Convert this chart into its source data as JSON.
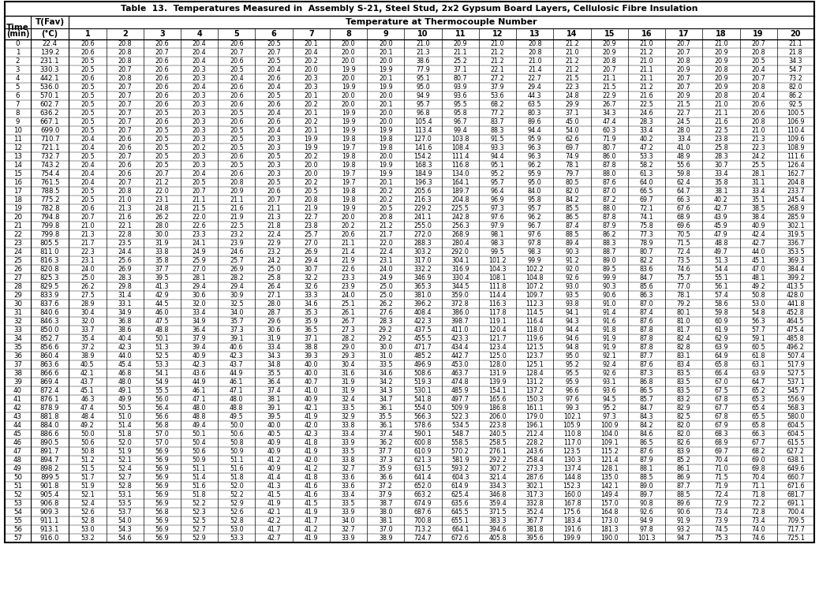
{
  "title": "Table  13.  Temperatures Measured in  Assembly S-21, Steel Stud, 2x2 Gypsum Board Layers, Cellulosic Fibre Insulation",
  "rows": [
    [
      0,
      22.4,
      20.6,
      20.8,
      20.6,
      20.4,
      20.6,
      20.5,
      20.1,
      20.0,
      20.0,
      21.0,
      20.9,
      21.0,
      20.8,
      21.2,
      20.9,
      21.0,
      20.7,
      21.0,
      20.7,
      21.1
    ],
    [
      1,
      139.2,
      20.6,
      20.8,
      20.7,
      20.4,
      20.7,
      20.7,
      20.4,
      20.0,
      20.1,
      21.3,
      21.1,
      21.2,
      20.8,
      21.0,
      20.9,
      21.2,
      20.7,
      20.9,
      20.8,
      21.8
    ],
    [
      2,
      231.1,
      20.5,
      20.8,
      20.6,
      20.4,
      20.6,
      20.5,
      20.2,
      20.0,
      20.0,
      38.6,
      25.2,
      21.2,
      21.0,
      21.2,
      20.8,
      21.0,
      20.8,
      20.9,
      20.5,
      34.3
    ],
    [
      3,
      330.3,
      20.5,
      20.7,
      20.6,
      20.3,
      20.5,
      20.4,
      20.0,
      19.9,
      19.9,
      77.9,
      37.1,
      22.1,
      21.4,
      21.2,
      20.7,
      21.1,
      20.9,
      20.8,
      20.4,
      54.7
    ],
    [
      4,
      442.1,
      20.6,
      20.8,
      20.6,
      20.3,
      20.4,
      20.6,
      20.3,
      20.0,
      20.1,
      95.1,
      80.7,
      27.2,
      22.7,
      21.5,
      21.1,
      21.1,
      20.7,
      20.9,
      20.7,
      73.2
    ],
    [
      5,
      536.0,
      20.5,
      20.7,
      20.6,
      20.4,
      20.6,
      20.4,
      20.3,
      19.9,
      19.9,
      95.0,
      93.9,
      37.9,
      29.4,
      22.3,
      21.5,
      21.2,
      20.7,
      20.9,
      20.8,
      82.0
    ],
    [
      6,
      570.1,
      20.5,
      20.7,
      20.6,
      20.3,
      20.6,
      20.5,
      20.1,
      20.0,
      20.0,
      94.9,
      93.6,
      53.6,
      44.3,
      24.8,
      22.9,
      21.6,
      20.9,
      20.8,
      20.4,
      86.2
    ],
    [
      7,
      602.7,
      20.5,
      20.7,
      20.6,
      20.3,
      20.6,
      20.6,
      20.2,
      20.0,
      20.1,
      95.7,
      95.5,
      68.2,
      63.5,
      29.9,
      26.7,
      22.5,
      21.5,
      21.0,
      20.6,
      92.5
    ],
    [
      8,
      636.2,
      20.5,
      20.7,
      20.5,
      20.3,
      20.5,
      20.4,
      20.1,
      19.9,
      20.0,
      96.8,
      95.8,
      77.2,
      80.3,
      37.1,
      34.3,
      24.6,
      22.7,
      21.1,
      20.6,
      100.5
    ],
    [
      9,
      667.1,
      20.5,
      20.7,
      20.6,
      20.3,
      20.6,
      20.6,
      20.2,
      19.9,
      20.0,
      105.4,
      96.7,
      83.7,
      89.6,
      45.0,
      47.4,
      28.3,
      24.5,
      21.6,
      20.8,
      106.9
    ],
    [
      10,
      699.0,
      20.5,
      20.7,
      20.5,
      20.3,
      20.5,
      20.4,
      20.1,
      19.9,
      19.9,
      113.4,
      99.4,
      88.3,
      94.4,
      54.0,
      60.3,
      33.4,
      28.0,
      22.5,
      21.0,
      110.4
    ],
    [
      11,
      710.7,
      20.4,
      20.6,
      20.5,
      20.3,
      20.5,
      20.3,
      19.9,
      19.8,
      19.8,
      127.0,
      103.8,
      91.5,
      95.9,
      62.6,
      71.9,
      40.2,
      33.4,
      23.8,
      21.3,
      109.6
    ],
    [
      12,
      721.1,
      20.4,
      20.6,
      20.5,
      20.2,
      20.5,
      20.3,
      19.9,
      19.7,
      19.8,
      141.6,
      108.4,
      93.3,
      96.3,
      69.7,
      80.7,
      47.2,
      41.0,
      25.8,
      22.3,
      108.9
    ],
    [
      13,
      732.7,
      20.5,
      20.7,
      20.5,
      20.3,
      20.6,
      20.5,
      20.2,
      19.8,
      20.0,
      154.2,
      111.4,
      94.4,
      96.3,
      74.9,
      86.0,
      53.3,
      48.9,
      28.3,
      24.2,
      111.6
    ],
    [
      14,
      743.2,
      20.4,
      20.6,
      20.5,
      20.3,
      20.5,
      20.3,
      20.0,
      19.8,
      19.9,
      168.3,
      116.8,
      95.1,
      96.2,
      78.1,
      87.8,
      58.2,
      55.6,
      30.7,
      25.5,
      126.4
    ],
    [
      15,
      754.4,
      20.4,
      20.6,
      20.7,
      20.4,
      20.6,
      20.3,
      20.0,
      19.7,
      19.9,
      184.9,
      134.0,
      95.2,
      95.9,
      79.7,
      88.0,
      61.3,
      59.8,
      33.4,
      28.1,
      162.7
    ],
    [
      16,
      761.5,
      20.4,
      20.7,
      21.2,
      20.5,
      20.8,
      20.5,
      20.2,
      19.7,
      20.1,
      196.3,
      164.1,
      95.7,
      95.0,
      80.5,
      87.6,
      64.0,
      62.4,
      35.8,
      31.1,
      204.8
    ],
    [
      17,
      788.5,
      20.5,
      20.8,
      22.0,
      20.7,
      20.9,
      20.6,
      20.5,
      19.8,
      20.2,
      205.6,
      189.7,
      96.4,
      84.0,
      82.0,
      87.0,
      66.5,
      64.7,
      38.1,
      33.4,
      233.7
    ],
    [
      18,
      775.2,
      20.5,
      21.0,
      23.1,
      21.1,
      21.1,
      20.7,
      20.8,
      19.8,
      20.2,
      216.3,
      204.8,
      96.9,
      95.8,
      84.2,
      87.2,
      69.7,
      66.3,
      40.2,
      35.1,
      245.4
    ],
    [
      19,
      782.8,
      20.6,
      21.3,
      24.8,
      21.5,
      21.6,
      21.1,
      21.9,
      19.9,
      20.5,
      229.2,
      225.5,
      97.3,
      95.7,
      85.5,
      88.0,
      72.1,
      67.6,
      42.7,
      38.5,
      268.9
    ],
    [
      20,
      794.8,
      20.7,
      21.6,
      26.2,
      22.0,
      21.9,
      21.3,
      22.7,
      20.0,
      20.8,
      241.1,
      242.8,
      97.6,
      96.2,
      86.5,
      87.8,
      74.1,
      68.9,
      43.9,
      38.4,
      285.9
    ],
    [
      21,
      799.8,
      21.0,
      22.1,
      28.0,
      22.6,
      22.5,
      21.8,
      23.8,
      20.2,
      21.2,
      255.0,
      256.3,
      97.9,
      96.7,
      87.4,
      87.9,
      75.8,
      69.6,
      45.9,
      40.9,
      302.1
    ],
    [
      22,
      799.8,
      21.3,
      22.8,
      30.0,
      23.3,
      23.2,
      22.4,
      25.7,
      20.6,
      21.7,
      272.0,
      268.9,
      98.1,
      97.6,
      88.5,
      86.2,
      77.3,
      70.5,
      47.9,
      42.4,
      319.5
    ],
    [
      23,
      805.5,
      21.7,
      23.5,
      31.9,
      24.1,
      23.9,
      22.9,
      27.0,
      21.1,
      22.0,
      288.3,
      280.4,
      98.3,
      97.8,
      89.4,
      88.3,
      78.9,
      71.5,
      48.8,
      42.7,
      336.7
    ],
    [
      24,
      811.0,
      22.3,
      24.4,
      33.8,
      24.9,
      24.6,
      23.2,
      26.9,
      21.4,
      22.4,
      303.2,
      292.0,
      99.5,
      98.3,
      90.3,
      88.7,
      80.7,
      72.4,
      49.7,
      44.0,
      353.5
    ],
    [
      25,
      816.3,
      23.1,
      25.6,
      35.8,
      25.9,
      25.7,
      24.2,
      29.4,
      21.9,
      23.1,
      317.0,
      304.1,
      101.2,
      99.9,
      91.2,
      89.0,
      82.2,
      73.5,
      51.3,
      45.1,
      369.3
    ],
    [
      26,
      820.8,
      24.0,
      26.9,
      37.7,
      27.0,
      26.9,
      25.0,
      30.7,
      22.6,
      24.0,
      332.2,
      316.9,
      104.3,
      102.2,
      92.0,
      89.5,
      83.6,
      74.6,
      54.4,
      47.0,
      384.4
    ],
    [
      27,
      825.3,
      25.0,
      28.3,
      39.5,
      28.1,
      28.2,
      25.8,
      32.2,
      23.3,
      24.9,
      346.9,
      330.4,
      108.1,
      104.8,
      92.6,
      99.9,
      84.7,
      75.7,
      55.1,
      48.1,
      399.2
    ],
    [
      28,
      829.5,
      26.2,
      29.8,
      41.3,
      29.4,
      29.4,
      26.4,
      32.6,
      23.9,
      25.0,
      365.3,
      344.5,
      111.8,
      107.2,
      93.0,
      90.3,
      85.6,
      77.0,
      56.1,
      49.2,
      413.5
    ],
    [
      29,
      833.9,
      27.5,
      31.4,
      42.9,
      30.6,
      30.9,
      27.1,
      33.3,
      24.0,
      25.0,
      381.0,
      359.0,
      114.4,
      109.7,
      93.5,
      90.6,
      86.3,
      78.1,
      57.4,
      50.8,
      428.0
    ],
    [
      30,
      837.6,
      28.9,
      33.1,
      44.5,
      32.0,
      32.5,
      28.0,
      34.6,
      25.1,
      26.2,
      396.2,
      372.8,
      116.3,
      112.3,
      93.8,
      91.0,
      87.0,
      79.2,
      58.6,
      53.0,
      441.8
    ],
    [
      31,
      840.6,
      30.4,
      34.9,
      46.0,
      33.4,
      34.0,
      28.7,
      35.3,
      26.1,
      27.6,
      408.4,
      386.0,
      117.8,
      114.5,
      94.1,
      91.4,
      87.4,
      80.1,
      59.8,
      54.8,
      452.8
    ],
    [
      32,
      846.3,
      32.0,
      36.8,
      47.5,
      34.9,
      35.7,
      29.6,
      35.9,
      26.7,
      28.3,
      422.3,
      398.7,
      119.1,
      116.4,
      94.3,
      91.6,
      87.6,
      81.0,
      60.9,
      56.3,
      464.5
    ],
    [
      33,
      850.0,
      33.7,
      38.6,
      48.8,
      36.4,
      37.3,
      30.6,
      36.5,
      27.3,
      29.2,
      437.5,
      411.0,
      120.4,
      118.0,
      94.4,
      91.8,
      87.8,
      81.7,
      61.9,
      57.7,
      475.4
    ],
    [
      34,
      852.7,
      35.4,
      40.4,
      50.1,
      37.9,
      39.1,
      31.9,
      37.1,
      28.2,
      29.2,
      455.5,
      423.3,
      121.7,
      119.6,
      94.6,
      91.9,
      87.8,
      82.4,
      62.9,
      59.1,
      485.8
    ],
    [
      35,
      856.6,
      37.2,
      42.3,
      51.3,
      39.4,
      40.6,
      33.4,
      38.8,
      29.0,
      30.0,
      471.7,
      434.4,
      123.4,
      121.5,
      94.8,
      91.9,
      87.8,
      82.8,
      63.9,
      60.5,
      496.2
    ],
    [
      36,
      860.4,
      38.9,
      44.0,
      52.5,
      40.9,
      42.3,
      34.3,
      39.3,
      29.3,
      31.0,
      485.2,
      442.7,
      125.0,
      123.7,
      95.0,
      92.1,
      87.7,
      83.1,
      64.9,
      61.8,
      507.4
    ],
    [
      37,
      863.6,
      40.5,
      45.4,
      53.3,
      42.3,
      43.7,
      34.8,
      40.0,
      30.4,
      33.5,
      496.9,
      453.0,
      128.0,
      125.1,
      95.2,
      92.4,
      87.6,
      83.4,
      65.8,
      63.1,
      517.9
    ],
    [
      38,
      866.6,
      42.1,
      46.8,
      54.1,
      43.6,
      44.9,
      35.5,
      40.0,
      31.6,
      34.6,
      508.6,
      463.7,
      131.9,
      128.4,
      95.5,
      92.6,
      87.3,
      83.5,
      66.4,
      63.9,
      527.5
    ],
    [
      39,
      869.4,
      43.7,
      48.0,
      54.9,
      44.9,
      46.1,
      36.4,
      40.7,
      31.9,
      34.2,
      519.3,
      474.8,
      139.9,
      131.2,
      95.9,
      93.1,
      86.8,
      83.5,
      67.0,
      64.7,
      537.1
    ],
    [
      40,
      872.4,
      45.1,
      49.1,
      55.5,
      46.1,
      47.1,
      37.4,
      41.0,
      31.9,
      34.3,
      530.1,
      485.9,
      154.1,
      137.2,
      96.6,
      93.6,
      86.5,
      83.5,
      67.5,
      65.2,
      545.7
    ],
    [
      41,
      876.1,
      46.3,
      49.9,
      56.0,
      47.1,
      48.0,
      38.1,
      40.9,
      32.4,
      34.7,
      541.8,
      497.7,
      165.6,
      150.3,
      97.6,
      94.5,
      85.7,
      83.2,
      67.8,
      65.3,
      556.9
    ],
    [
      42,
      878.9,
      47.4,
      50.5,
      56.4,
      48.0,
      48.8,
      39.1,
      42.1,
      33.5,
      36.1,
      554.0,
      509.9,
      186.8,
      161.1,
      99.3,
      95.2,
      84.7,
      82.9,
      67.7,
      65.4,
      568.3
    ],
    [
      43,
      881.8,
      48.4,
      51.0,
      56.6,
      48.8,
      49.5,
      39.5,
      41.9,
      32.9,
      35.5,
      566.3,
      522.3,
      206.0,
      179.0,
      102.1,
      97.3,
      84.3,
      82.5,
      67.8,
      65.5,
      580.0
    ],
    [
      44,
      884.0,
      49.2,
      51.4,
      56.8,
      49.4,
      50.0,
      40.0,
      42.0,
      33.8,
      36.1,
      578.6,
      534.5,
      223.8,
      196.1,
      105.9,
      100.9,
      84.2,
      82.0,
      67.9,
      65.8,
      604.5
    ],
    [
      45,
      886.6,
      50.0,
      51.8,
      57.0,
      50.1,
      50.6,
      40.5,
      42.3,
      33.4,
      37.4,
      590.1,
      548.7,
      240.5,
      212.4,
      110.8,
      104.0,
      84.6,
      82.0,
      68.3,
      66.3,
      604.5
    ],
    [
      46,
      890.5,
      50.6,
      52.0,
      57.0,
      50.4,
      50.8,
      40.9,
      41.8,
      33.9,
      36.2,
      600.8,
      558.5,
      258.5,
      228.2,
      117.0,
      109.1,
      86.5,
      82.6,
      68.9,
      67.7,
      615.5
    ],
    [
      47,
      891.7,
      50.8,
      51.9,
      56.9,
      50.6,
      50.9,
      40.9,
      41.9,
      33.5,
      37.7,
      610.9,
      570.2,
      276.1,
      243.6,
      123.5,
      115.2,
      87.6,
      83.9,
      69.7,
      68.2,
      627.2
    ],
    [
      48,
      894.7,
      51.2,
      52.1,
      56.9,
      50.9,
      51.1,
      41.2,
      42.0,
      33.8,
      37.3,
      621.3,
      581.9,
      292.2,
      258.4,
      130.3,
      121.4,
      87.9,
      85.2,
      70.4,
      69.0,
      638.1
    ],
    [
      49,
      898.2,
      51.5,
      52.4,
      56.9,
      51.1,
      51.6,
      40.9,
      41.2,
      32.7,
      35.9,
      631.5,
      593.2,
      307.2,
      273.3,
      137.4,
      128.1,
      88.1,
      86.1,
      71.0,
      69.8,
      649.6
    ],
    [
      50,
      899.5,
      51.7,
      52.7,
      56.9,
      51.4,
      51.8,
      41.4,
      41.8,
      33.6,
      36.6,
      641.4,
      604.3,
      321.4,
      287.6,
      144.8,
      135.0,
      88.5,
      86.9,
      71.5,
      70.4,
      660.7
    ],
    [
      51,
      901.8,
      51.9,
      52.8,
      56.9,
      51.6,
      52.0,
      41.3,
      41.6,
      33.6,
      37.2,
      652.0,
      614.9,
      334.3,
      302.1,
      152.3,
      142.1,
      89.0,
      87.7,
      71.9,
      71.1,
      671.6
    ],
    [
      52,
      905.4,
      52.1,
      53.1,
      56.9,
      51.8,
      52.2,
      41.5,
      41.6,
      33.4,
      37.9,
      663.2,
      625.4,
      346.8,
      317.3,
      160.0,
      149.4,
      89.7,
      88.5,
      72.4,
      71.8,
      681.7
    ],
    [
      53,
      906.8,
      52.4,
      53.5,
      56.9,
      52.2,
      52.9,
      41.9,
      41.5,
      33.5,
      38.7,
      674.9,
      635.6,
      359.4,
      332.8,
      167.8,
      157.0,
      90.8,
      89.6,
      72.9,
      72.2,
      691.1
    ],
    [
      54,
      909.3,
      52.6,
      53.7,
      56.8,
      52.3,
      52.6,
      42.1,
      41.9,
      33.9,
      38.0,
      687.6,
      645.5,
      371.5,
      352.4,
      175.6,
      164.8,
      92.6,
      90.6,
      73.4,
      72.8,
      700.4
    ],
    [
      55,
      911.1,
      52.8,
      54.0,
      56.9,
      52.5,
      52.8,
      42.2,
      41.7,
      34.0,
      38.1,
      700.8,
      655.1,
      383.3,
      367.7,
      183.4,
      173.0,
      94.9,
      91.9,
      73.9,
      73.4,
      709.5
    ],
    [
      56,
      913.1,
      53.0,
      54.3,
      56.9,
      52.7,
      53.0,
      41.7,
      41.2,
      32.7,
      37.0,
      713.2,
      664.1,
      394.6,
      381.8,
      191.6,
      181.3,
      97.8,
      93.2,
      74.5,
      74.0,
      717.7
    ],
    [
      57,
      916.0,
      53.2,
      54.6,
      56.9,
      52.9,
      53.3,
      42.7,
      41.9,
      33.9,
      38.9,
      724.7,
      672.6,
      405.8,
      395.6,
      199.9,
      190.0,
      101.3,
      94.7,
      75.3,
      74.6,
      725.1
    ]
  ]
}
